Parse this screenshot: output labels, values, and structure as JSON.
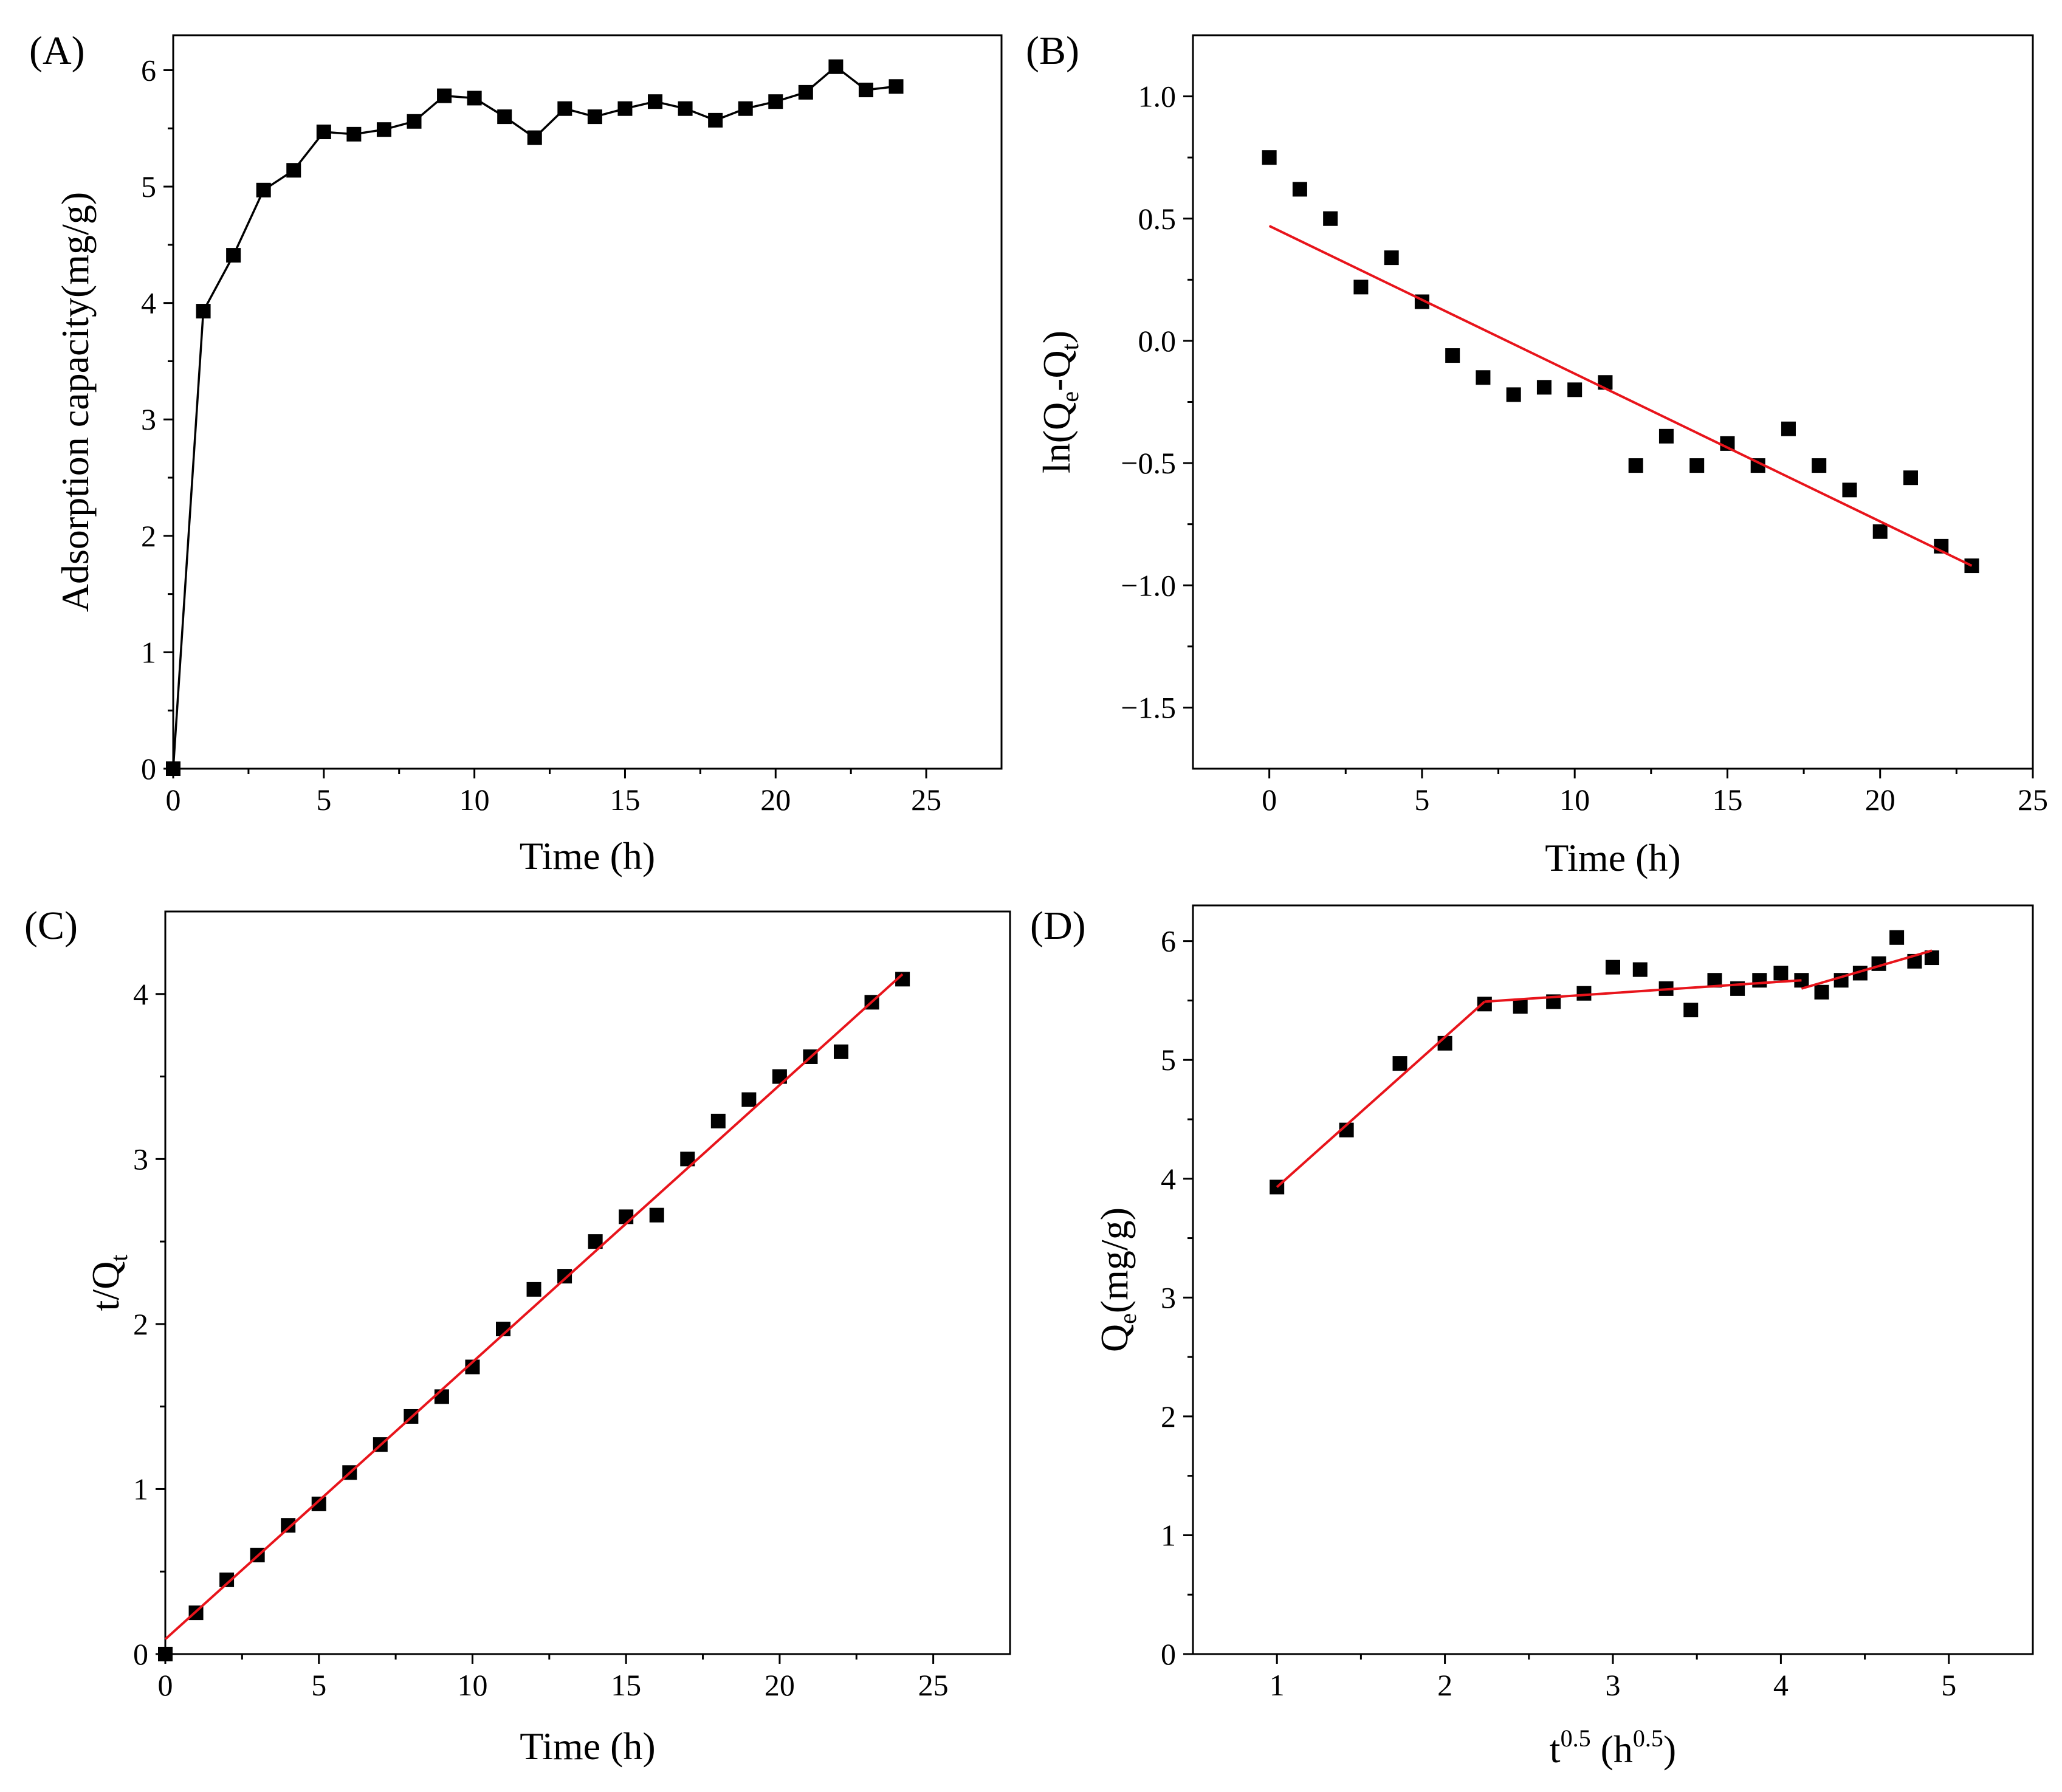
{
  "chart_data": [
    {
      "panel": "(A)",
      "type": "line",
      "xlabel": "Time (h)",
      "ylabel": "Adsorption capacity(mg/g)",
      "xlim": [
        0,
        27.5
      ],
      "ylim": [
        0,
        6.3
      ],
      "xticks": [
        0,
        5,
        10,
        15,
        20,
        25
      ],
      "yticks": [
        0,
        1,
        2,
        3,
        4,
        5,
        6
      ],
      "grid": false,
      "series": [
        {
          "style": "line+markers",
          "color": "#000000",
          "x": [
            0,
            1,
            2,
            3,
            4,
            5,
            6,
            7,
            8,
            9,
            10,
            11,
            12,
            13,
            14,
            15,
            16,
            17,
            18,
            19,
            20,
            21,
            22,
            23,
            24
          ],
          "y": [
            0,
            3.93,
            4.41,
            4.97,
            5.14,
            5.47,
            5.45,
            5.49,
            5.56,
            5.78,
            5.76,
            5.6,
            5.42,
            5.67,
            5.6,
            5.67,
            5.73,
            5.67,
            5.57,
            5.67,
            5.73,
            5.81,
            6.03,
            5.83,
            5.86
          ]
        }
      ]
    },
    {
      "panel": "(B)",
      "type": "scatter",
      "xlabel": "Time (h)",
      "ylabel": "ln(Qe-Qt)",
      "ylabel_parts": {
        "pre": "ln(Q",
        "sub1": "e",
        "mid": "-Q",
        "sub2": "t",
        "post": ")"
      },
      "xlim": [
        -2.5,
        25
      ],
      "ylim": [
        -1.75,
        1.25
      ],
      "xticks": [
        0,
        5,
        10,
        15,
        20,
        25
      ],
      "yticks": [
        1.0,
        0.5,
        0.0,
        -0.5,
        -1.0,
        -1.5
      ],
      "ytick_labels": [
        "1.0",
        "0.5",
        "0.0",
        "−0.5",
        "−1.0",
        "−1.5"
      ],
      "grid": false,
      "series": [
        {
          "style": "markers",
          "color": "#000000",
          "x": [
            0,
            1,
            2,
            3,
            4,
            5,
            6,
            7,
            8,
            9,
            10,
            11,
            12,
            13,
            14,
            15,
            16,
            17,
            18,
            19,
            20,
            21,
            22,
            23
          ],
          "y": [
            0.75,
            0.62,
            0.5,
            0.22,
            0.34,
            0.16,
            -0.06,
            -0.15,
            -0.22,
            -0.19,
            -0.2,
            -0.17,
            -0.51,
            -0.39,
            -0.51,
            -0.42,
            -0.51,
            -0.36,
            -0.51,
            -0.61,
            -0.78,
            -0.56,
            -0.84,
            -0.92
          ]
        },
        {
          "style": "fit-line",
          "color": "#e8141b",
          "x": [
            0,
            23
          ],
          "y": [
            0.47,
            -0.92
          ]
        }
      ]
    },
    {
      "panel": "(C)",
      "type": "scatter",
      "xlabel": "Time (h)",
      "ylabel": "t/Qt",
      "ylabel_parts": {
        "pre": "t/Q",
        "sub1": "t",
        "mid": "",
        "sub2": "",
        "post": ""
      },
      "xlim": [
        0,
        27.5
      ],
      "ylim": [
        0,
        4.5
      ],
      "xticks": [
        0,
        5,
        10,
        15,
        20,
        25
      ],
      "yticks": [
        0,
        1,
        2,
        3,
        4
      ],
      "grid": false,
      "series": [
        {
          "style": "markers",
          "color": "#000000",
          "x": [
            0,
            1,
            2,
            3,
            4,
            5,
            6,
            7,
            8,
            9,
            10,
            11,
            12,
            13,
            14,
            15,
            16,
            17,
            18,
            19,
            20,
            21,
            22,
            23,
            24
          ],
          "y": [
            0,
            0.25,
            0.45,
            0.6,
            0.78,
            0.91,
            1.1,
            1.27,
            1.44,
            1.56,
            1.74,
            1.97,
            2.21,
            2.29,
            2.5,
            2.65,
            2.66,
            3.0,
            3.23,
            3.36,
            3.5,
            3.62,
            3.65,
            3.95,
            4.09
          ]
        },
        {
          "style": "fit-line",
          "color": "#e8141b",
          "x": [
            0,
            24
          ],
          "y": [
            0.09,
            4.12
          ]
        }
      ]
    },
    {
      "panel": "(D)",
      "type": "scatter",
      "xlabel": "t0.5 (h0.5)",
      "xlabel_parts": {
        "a": "t",
        "sup1": "0.5",
        "b": " (h",
        "sup2": "0.5",
        "c": ")"
      },
      "ylabel": "Qe(mg/g)",
      "ylabel_parts": {
        "pre": "Q",
        "sub1": "e",
        "mid": "",
        "sub2": "",
        "post": "(mg/g)"
      },
      "xlim": [
        0.5,
        5.5
      ],
      "ylim": [
        0,
        6.3
      ],
      "xticks": [
        1,
        2,
        3,
        4,
        5
      ],
      "yticks": [
        0,
        1,
        2,
        3,
        4,
        5,
        6
      ],
      "grid": false,
      "series": [
        {
          "style": "markers",
          "color": "#000000",
          "x": [
            1.0,
            1.414,
            1.732,
            2.0,
            2.236,
            2.449,
            2.646,
            2.828,
            3.0,
            3.162,
            3.317,
            3.464,
            3.606,
            3.742,
            3.873,
            4.0,
            4.123,
            4.243,
            4.359,
            4.472,
            4.583,
            4.69,
            4.796,
            4.899
          ],
          "y": [
            3.93,
            4.41,
            4.97,
            5.14,
            5.47,
            5.45,
            5.49,
            5.56,
            5.78,
            5.76,
            5.6,
            5.42,
            5.67,
            5.6,
            5.67,
            5.73,
            5.67,
            5.57,
            5.67,
            5.73,
            5.81,
            6.03,
            5.83,
            5.86
          ]
        },
        {
          "style": "fit-line",
          "color": "#e8141b",
          "x": [
            1.0,
            2.236
          ],
          "y": [
            3.93,
            5.49
          ]
        },
        {
          "style": "fit-line",
          "color": "#e8141b",
          "x": [
            2.236,
            4.123
          ],
          "y": [
            5.49,
            5.67
          ]
        },
        {
          "style": "fit-line",
          "color": "#e8141b",
          "x": [
            4.123,
            4.899
          ],
          "y": [
            5.6,
            5.92
          ]
        }
      ]
    }
  ]
}
